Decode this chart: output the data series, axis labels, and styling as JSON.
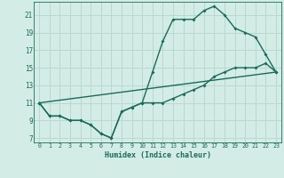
{
  "title": "",
  "xlabel": "Humidex (Indice chaleur)",
  "ylabel": "",
  "bg_color": "#d4ece6",
  "grid_color": "#b8d8d0",
  "line_color": "#1a6b5a",
  "xlim": [
    -0.5,
    23.5
  ],
  "ylim": [
    6.5,
    22.5
  ],
  "xticks": [
    0,
    1,
    2,
    3,
    4,
    5,
    6,
    7,
    8,
    9,
    10,
    11,
    12,
    13,
    14,
    15,
    16,
    17,
    18,
    19,
    20,
    21,
    22,
    23
  ],
  "yticks": [
    7,
    9,
    11,
    13,
    15,
    17,
    19,
    21
  ],
  "line1_x": [
    0,
    1,
    2,
    3,
    4,
    5,
    6,
    7,
    8,
    9,
    10,
    11,
    12,
    13,
    14,
    15,
    16,
    17,
    18,
    19,
    20,
    21,
    22,
    23
  ],
  "line1_y": [
    11,
    9.5,
    9.5,
    9,
    9,
    8.5,
    7.5,
    7,
    10,
    10.5,
    11,
    14.5,
    18,
    20.5,
    20.5,
    20.5,
    21.5,
    22,
    21,
    19.5,
    19,
    18.5,
    16.5,
    14.5
  ],
  "line2_x": [
    0,
    1,
    2,
    3,
    4,
    5,
    6,
    7,
    8,
    9,
    10,
    11,
    12,
    13,
    14,
    15,
    16,
    17,
    18,
    19,
    20,
    21,
    22,
    23
  ],
  "line2_y": [
    11,
    9.5,
    9.5,
    9,
    9,
    8.5,
    7.5,
    7,
    10,
    10.5,
    11,
    11,
    11,
    11.5,
    12,
    12.5,
    13,
    14,
    14.5,
    15,
    15,
    15,
    15.5,
    14.5
  ],
  "line3_x": [
    0,
    23
  ],
  "line3_y": [
    11,
    14.5
  ]
}
